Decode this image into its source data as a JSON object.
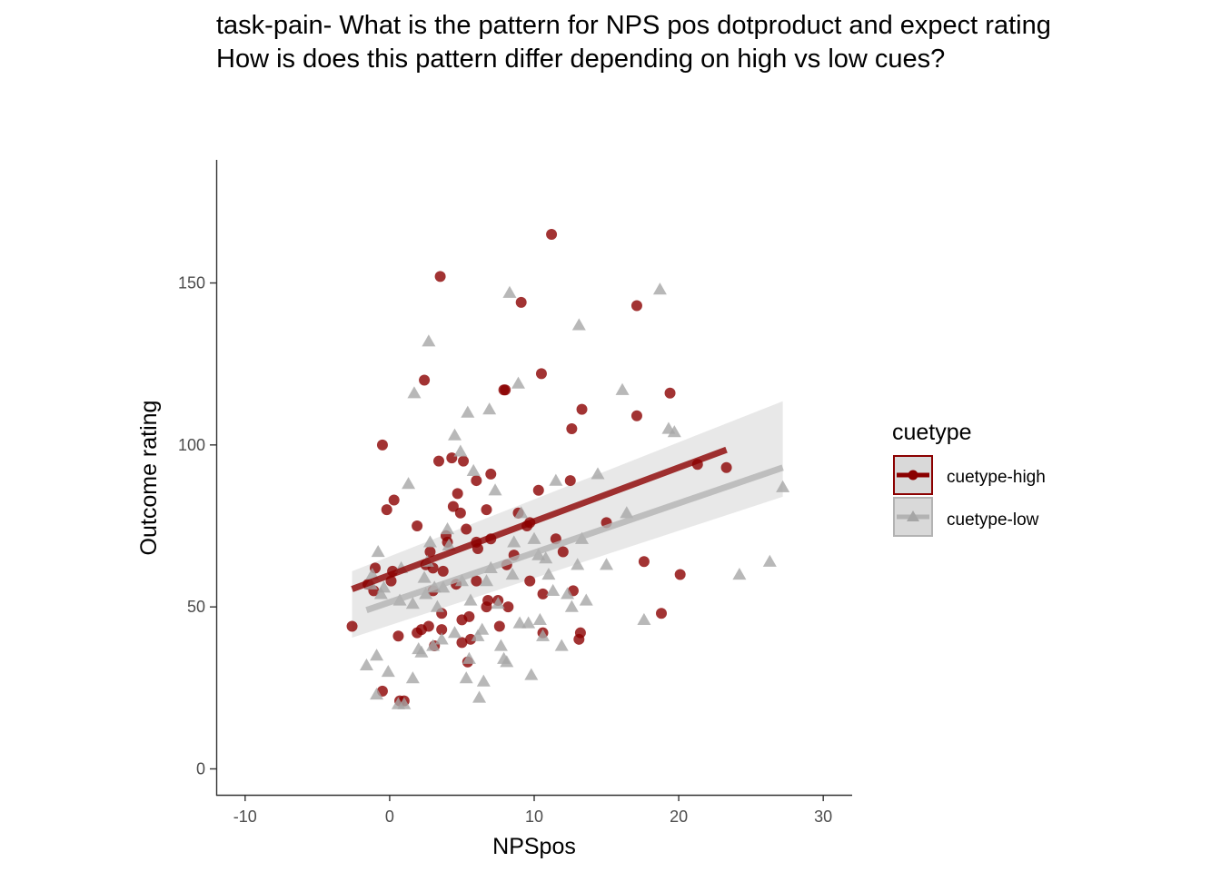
{
  "title_lines": [
    "task-pain- What is the pattern for NPS pos dotproduct and expect rating",
    "How is does this pattern differ depending on high vs low cues?"
  ],
  "chart_data": {
    "type": "scatter",
    "xlabel": "NPSpos",
    "ylabel": "Outcome rating",
    "xlim": [
      -12,
      32
    ],
    "ylim": [
      -8,
      188
    ],
    "x_ticks": [
      -10,
      0,
      10,
      20,
      30
    ],
    "x_tick_labels": [
      "-10",
      "0",
      "10",
      "20",
      "30"
    ],
    "y_ticks": [
      0,
      50,
      100,
      150
    ],
    "y_tick_labels": [
      "0",
      "50",
      "100",
      "150"
    ],
    "grid": false,
    "legend": {
      "title": "cuetype",
      "position": "right"
    },
    "series": [
      {
        "name": "cuetype-high",
        "marker": "circle",
        "color": "#8b0000",
        "points": [
          [
            -2.6,
            44
          ],
          [
            -1.5,
            57
          ],
          [
            -1.1,
            55
          ],
          [
            -1.0,
            62
          ],
          [
            -0.5,
            24
          ],
          [
            -0.5,
            100
          ],
          [
            -0.2,
            80
          ],
          [
            0.1,
            58
          ],
          [
            0.2,
            61
          ],
          [
            0.3,
            83
          ],
          [
            0.6,
            41
          ],
          [
            0.7,
            21
          ],
          [
            1.0,
            21
          ],
          [
            1.9,
            75
          ],
          [
            1.9,
            42
          ],
          [
            2.2,
            43
          ],
          [
            2.4,
            120
          ],
          [
            2.5,
            63
          ],
          [
            2.7,
            44
          ],
          [
            2.8,
            67
          ],
          [
            3.0,
            62
          ],
          [
            3.0,
            55
          ],
          [
            3.1,
            38
          ],
          [
            3.4,
            95
          ],
          [
            3.5,
            152
          ],
          [
            3.6,
            48
          ],
          [
            3.6,
            43
          ],
          [
            3.7,
            61
          ],
          [
            3.9,
            72
          ],
          [
            4.0,
            70
          ],
          [
            4.3,
            96
          ],
          [
            4.4,
            81
          ],
          [
            4.6,
            57
          ],
          [
            4.7,
            85
          ],
          [
            4.9,
            79
          ],
          [
            5.0,
            46
          ],
          [
            5.0,
            39
          ],
          [
            5.1,
            95
          ],
          [
            5.3,
            74
          ],
          [
            5.4,
            33
          ],
          [
            5.5,
            47
          ],
          [
            5.6,
            40
          ],
          [
            6.0,
            89
          ],
          [
            6.0,
            70
          ],
          [
            6.0,
            58
          ],
          [
            6.1,
            68
          ],
          [
            6.7,
            80
          ],
          [
            6.7,
            50
          ],
          [
            6.8,
            52
          ],
          [
            7.0,
            71
          ],
          [
            7.0,
            91
          ],
          [
            7.5,
            52
          ],
          [
            7.6,
            44
          ],
          [
            7.9,
            117
          ],
          [
            8.0,
            117
          ],
          [
            8.1,
            63
          ],
          [
            8.2,
            50
          ],
          [
            8.6,
            66
          ],
          [
            8.9,
            79
          ],
          [
            9.1,
            144
          ],
          [
            9.5,
            75
          ],
          [
            9.7,
            76
          ],
          [
            9.7,
            58
          ],
          [
            10.3,
            86
          ],
          [
            10.5,
            122
          ],
          [
            10.6,
            54
          ],
          [
            10.6,
            42
          ],
          [
            11.2,
            165
          ],
          [
            11.5,
            71
          ],
          [
            12.0,
            67
          ],
          [
            12.5,
            89
          ],
          [
            12.6,
            105
          ],
          [
            12.7,
            55
          ],
          [
            13.1,
            40
          ],
          [
            13.2,
            42
          ],
          [
            13.3,
            111
          ],
          [
            15.0,
            76
          ],
          [
            17.1,
            109
          ],
          [
            17.1,
            143
          ],
          [
            17.6,
            64
          ],
          [
            18.8,
            48
          ],
          [
            19.4,
            116
          ],
          [
            20.1,
            60
          ],
          [
            21.3,
            94
          ],
          [
            23.3,
            93
          ]
        ],
        "fit": {
          "x": [
            -2.6,
            23.3
          ],
          "y": [
            55.5,
            98.5
          ]
        }
      },
      {
        "name": "cuetype-low",
        "marker": "triangle",
        "color": "#a6a6a6",
        "points": [
          [
            -1.6,
            32
          ],
          [
            -1.3,
            57
          ],
          [
            -1.2,
            60
          ],
          [
            -0.9,
            23
          ],
          [
            -0.9,
            35
          ],
          [
            -0.8,
            67
          ],
          [
            -0.6,
            54
          ],
          [
            -0.4,
            56
          ],
          [
            -0.1,
            30
          ],
          [
            0.6,
            20
          ],
          [
            0.7,
            52
          ],
          [
            0.8,
            62
          ],
          [
            1.0,
            20
          ],
          [
            1.3,
            88
          ],
          [
            1.6,
            51
          ],
          [
            1.6,
            28
          ],
          [
            1.7,
            116
          ],
          [
            2.0,
            37
          ],
          [
            2.2,
            36
          ],
          [
            2.4,
            59
          ],
          [
            2.5,
            54
          ],
          [
            2.6,
            64
          ],
          [
            2.7,
            132
          ],
          [
            2.8,
            70
          ],
          [
            3.0,
            38
          ],
          [
            3.1,
            56
          ],
          [
            3.3,
            50
          ],
          [
            3.6,
            40
          ],
          [
            3.7,
            56
          ],
          [
            4.0,
            74
          ],
          [
            4.1,
            69
          ],
          [
            4.5,
            103
          ],
          [
            4.5,
            42
          ],
          [
            4.9,
            98
          ],
          [
            5.0,
            58
          ],
          [
            5.3,
            28
          ],
          [
            5.4,
            110
          ],
          [
            5.5,
            34
          ],
          [
            5.6,
            52
          ],
          [
            5.8,
            92
          ],
          [
            6.1,
            41
          ],
          [
            6.2,
            22
          ],
          [
            6.4,
            43
          ],
          [
            6.5,
            27
          ],
          [
            6.7,
            58
          ],
          [
            6.9,
            111
          ],
          [
            7.0,
            62
          ],
          [
            7.3,
            86
          ],
          [
            7.5,
            51
          ],
          [
            7.7,
            38
          ],
          [
            7.9,
            34
          ],
          [
            8.1,
            33
          ],
          [
            8.3,
            147
          ],
          [
            8.5,
            60
          ],
          [
            8.6,
            70
          ],
          [
            8.9,
            119
          ],
          [
            9.0,
            45
          ],
          [
            9.1,
            79
          ],
          [
            9.6,
            45
          ],
          [
            9.8,
            29
          ],
          [
            10.0,
            71
          ],
          [
            10.3,
            66
          ],
          [
            10.4,
            46
          ],
          [
            10.6,
            41
          ],
          [
            10.8,
            65
          ],
          [
            11.0,
            60
          ],
          [
            11.3,
            55
          ],
          [
            11.5,
            89
          ],
          [
            11.9,
            38
          ],
          [
            12.3,
            54
          ],
          [
            12.6,
            50
          ],
          [
            13.0,
            63
          ],
          [
            13.1,
            137
          ],
          [
            13.3,
            71
          ],
          [
            13.6,
            52
          ],
          [
            14.4,
            91
          ],
          [
            15.0,
            63
          ],
          [
            16.1,
            117
          ],
          [
            16.4,
            79
          ],
          [
            17.6,
            46
          ],
          [
            18.7,
            148
          ],
          [
            19.3,
            105
          ],
          [
            19.7,
            104
          ],
          [
            24.2,
            60
          ],
          [
            26.3,
            64
          ],
          [
            27.2,
            87
          ]
        ],
        "fit": {
          "x": [
            -1.6,
            27.2
          ],
          "y": [
            49.0,
            93.0
          ]
        },
        "band_x": [
          -2.6,
          27.2
        ],
        "band_lower": [
          40.5,
          84.0
        ],
        "band_upper": [
          61.0,
          113.5
        ]
      }
    ]
  }
}
